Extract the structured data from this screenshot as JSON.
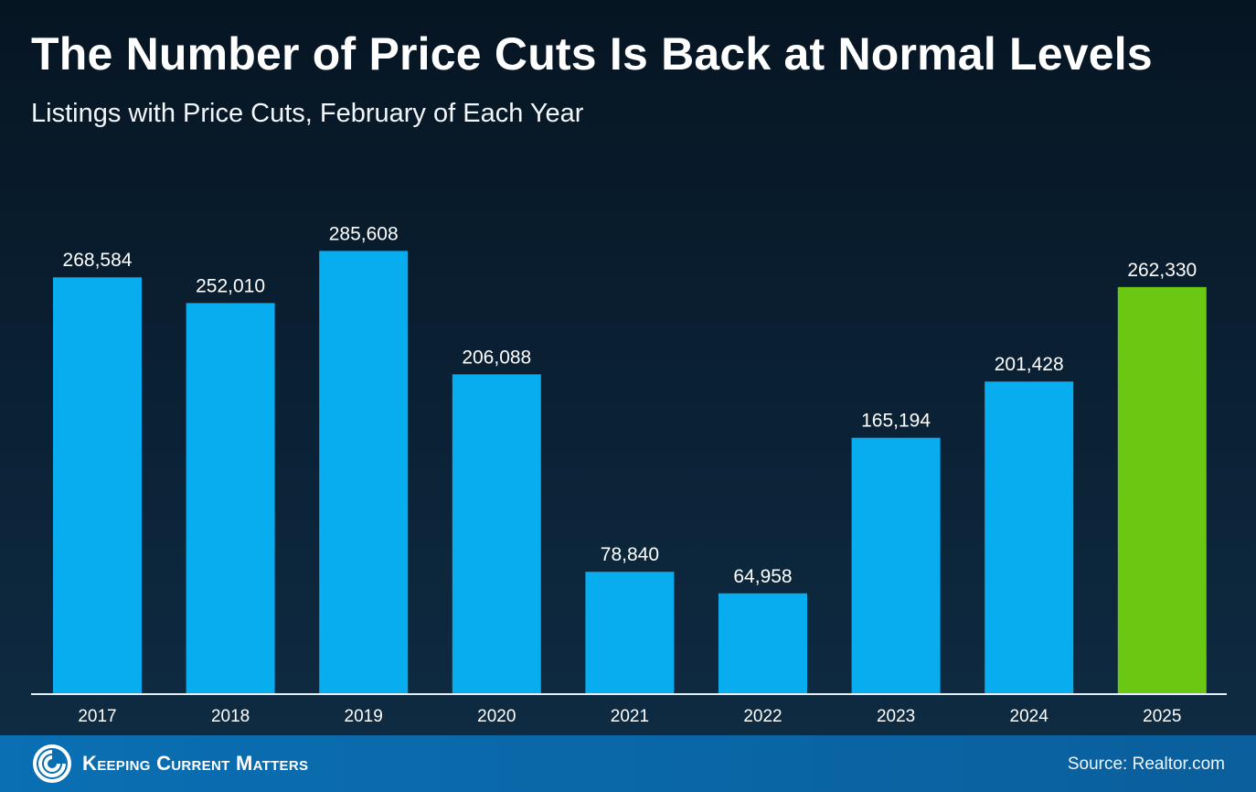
{
  "header": {
    "title": "The Number of Price Cuts Is Back at Normal Levels",
    "subtitle": "Listings with Price Cuts, February of Each Year"
  },
  "footer": {
    "brand": "Keeping Current Matters",
    "source": "Source: Realtor.com"
  },
  "colors": {
    "bar": "#08adf0",
    "highlight_bar": "#6ac712",
    "text": "#ffffff"
  },
  "chart_data": {
    "type": "bar",
    "title": "The Number of Price Cuts Is Back at Normal Levels",
    "subtitle": "Listings with Price Cuts, February of Each Year",
    "categories": [
      "2017",
      "2018",
      "2019",
      "2020",
      "2021",
      "2022",
      "2023",
      "2024",
      "2025"
    ],
    "values": [
      268584,
      252010,
      285608,
      206088,
      78840,
      64958,
      165194,
      201428,
      262330
    ],
    "value_labels": [
      "268,584",
      "252,010",
      "285,608",
      "206,088",
      "78,840",
      "64,958",
      "165,194",
      "201,428",
      "262,330"
    ],
    "highlighted_category": "2025",
    "xlabel": "",
    "ylabel": "",
    "ylim": [
      0,
      320000
    ],
    "grid": false,
    "legend": "none"
  }
}
